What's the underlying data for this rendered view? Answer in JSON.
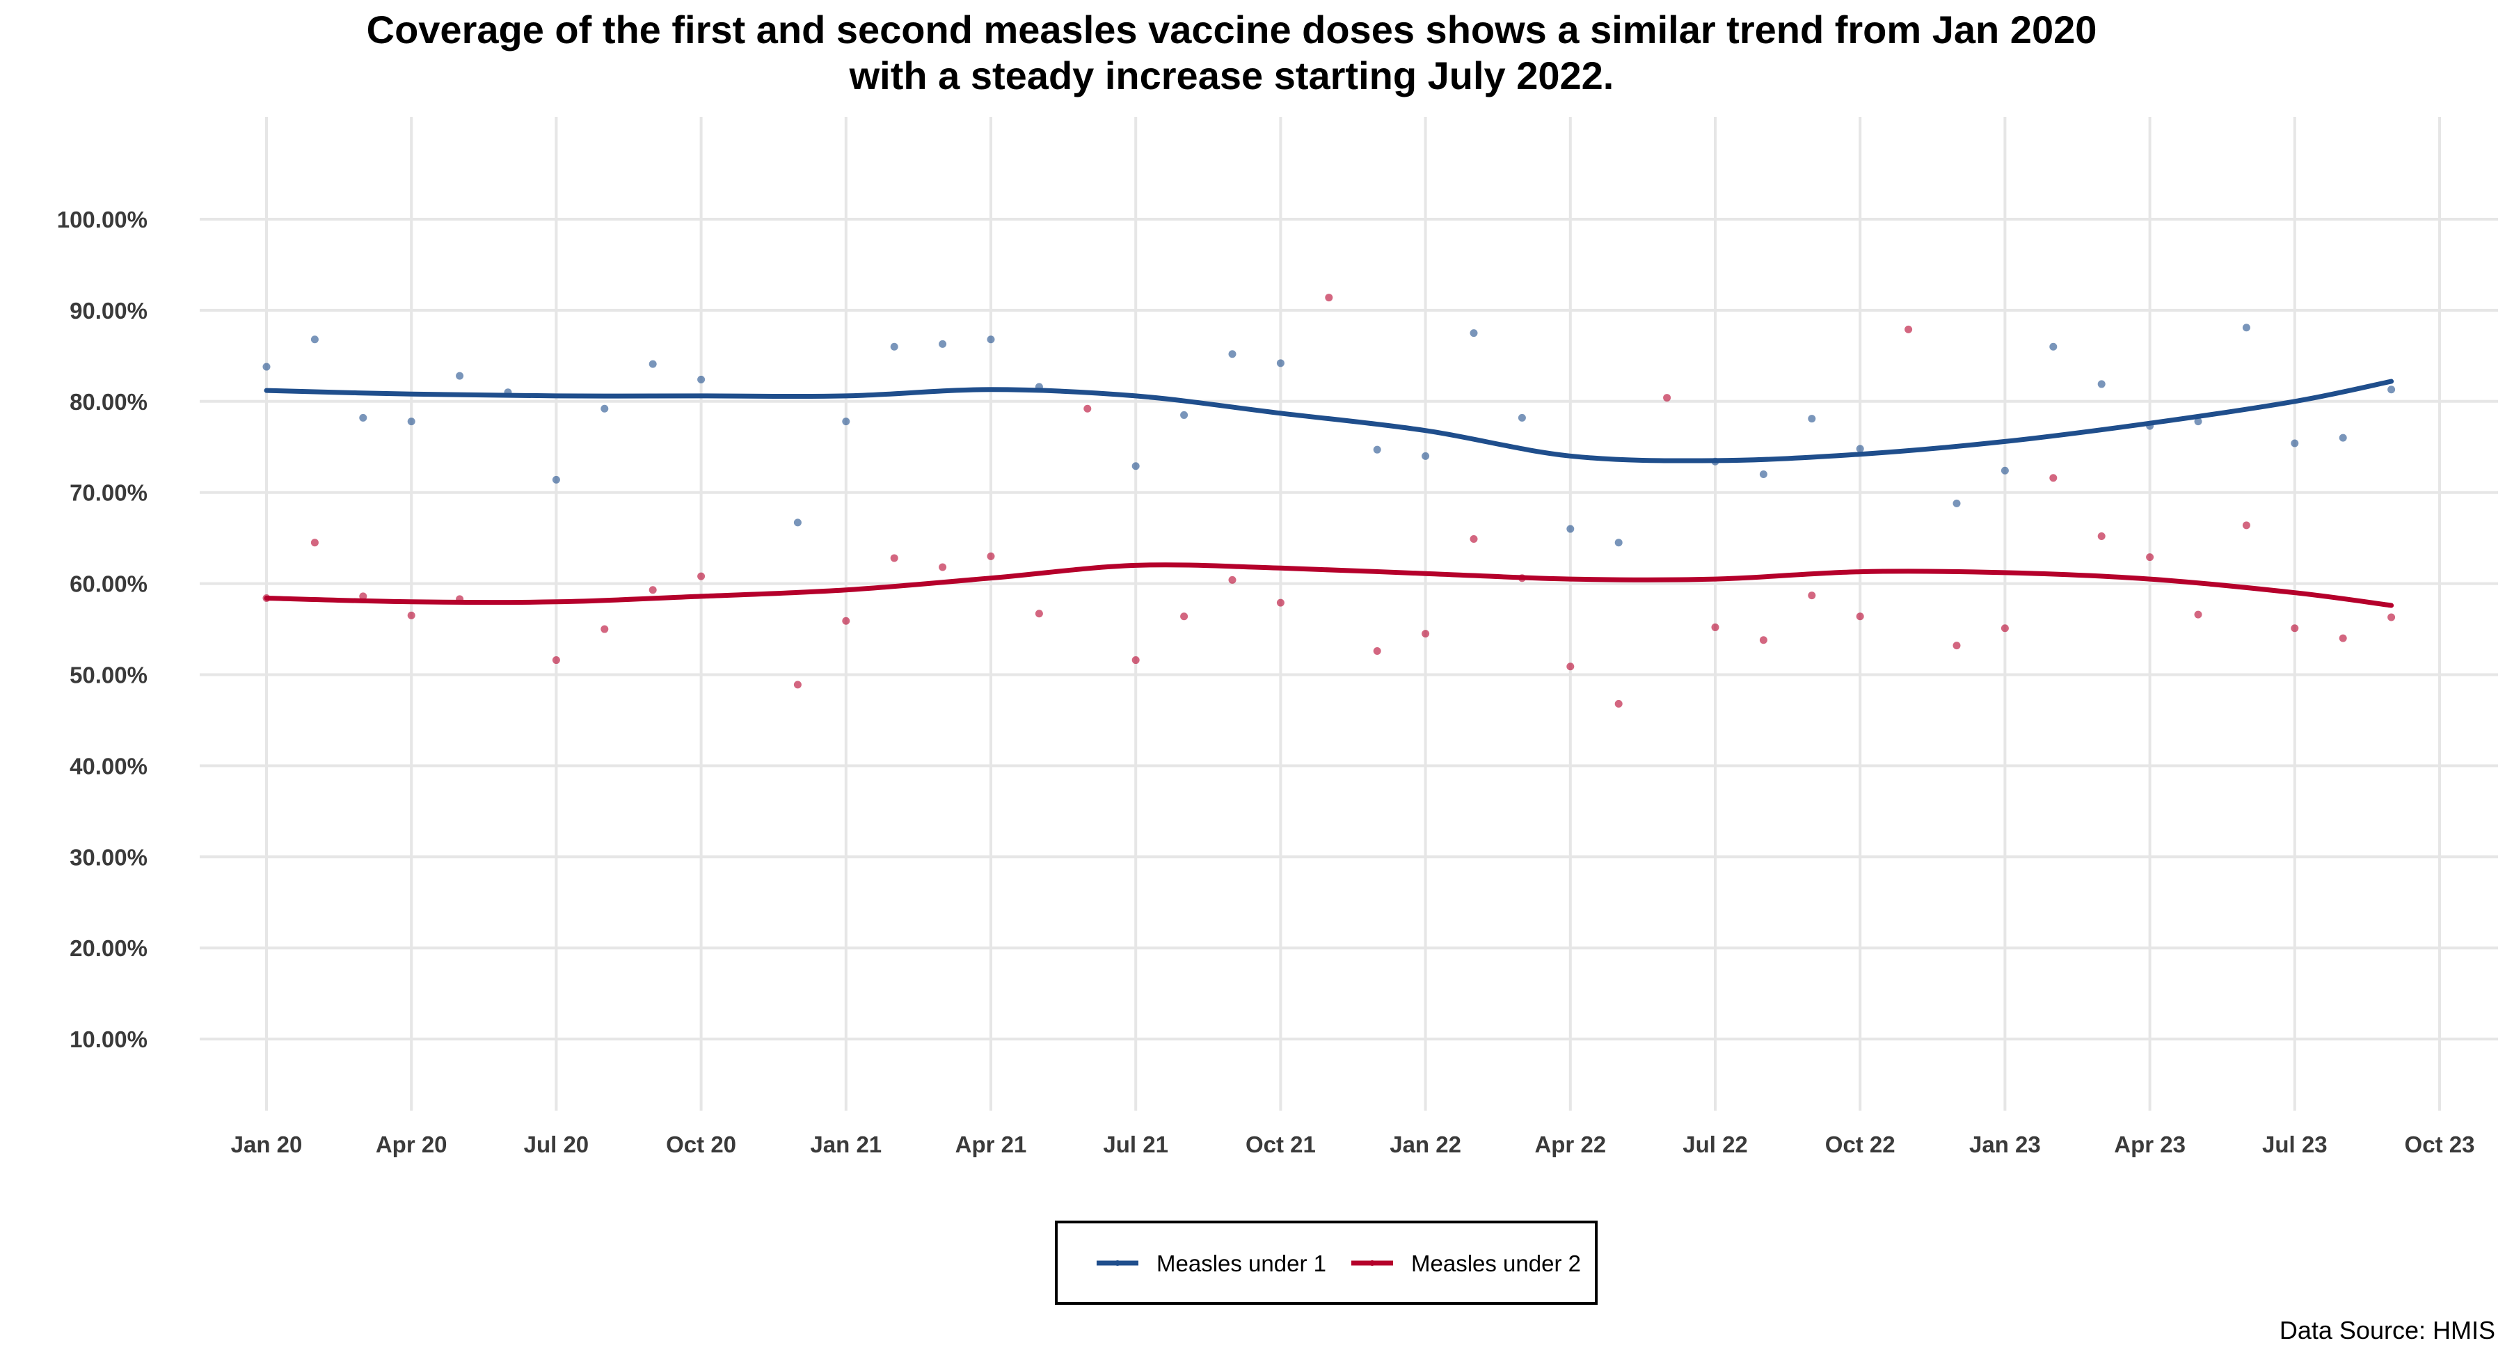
{
  "title_lines": [
    "Coverage of the first and second measles vaccine doses shows a similar trend from Jan 2020",
    "with a steady increase starting July 2022."
  ],
  "source": "Data Source: HMIS",
  "colors": {
    "series1": "#1f4e8c",
    "series2": "#b5002b",
    "grid": "#e6e6e6"
  },
  "chart_data": {
    "type": "scatter",
    "title": "Coverage of the first and second measles vaccine doses shows a similar trend from Jan 2020 with a steady increase starting July 2022.",
    "xlabel": "",
    "ylabel": "",
    "x_ticks": [
      {
        "month": "2020-01",
        "label": "Jan 20"
      },
      {
        "month": "2020-04",
        "label": "Apr 20"
      },
      {
        "month": "2020-07",
        "label": "Jul 20"
      },
      {
        "month": "2020-10",
        "label": "Oct 20"
      },
      {
        "month": "2021-01",
        "label": "Jan 21"
      },
      {
        "month": "2021-04",
        "label": "Apr 21"
      },
      {
        "month": "2021-07",
        "label": "Jul 21"
      },
      {
        "month": "2021-10",
        "label": "Oct 21"
      },
      {
        "month": "2022-01",
        "label": "Jan 22"
      },
      {
        "month": "2022-04",
        "label": "Apr 22"
      },
      {
        "month": "2022-07",
        "label": "Jul 22"
      },
      {
        "month": "2022-10",
        "label": "Oct 22"
      },
      {
        "month": "2023-01",
        "label": "Jan 23"
      },
      {
        "month": "2023-04",
        "label": "Apr 23"
      },
      {
        "month": "2023-07",
        "label": "Jul 23"
      },
      {
        "month": "2023-10",
        "label": "Oct 23"
      }
    ],
    "y_ticks": [
      {
        "value": 10,
        "label": "10.00%"
      },
      {
        "value": 20,
        "label": "20.00%"
      },
      {
        "value": 30,
        "label": "30.00%"
      },
      {
        "value": 40,
        "label": "40.00%"
      },
      {
        "value": 50,
        "label": "50.00%"
      },
      {
        "value": 60,
        "label": "60.00%"
      },
      {
        "value": 70,
        "label": "70.00%"
      },
      {
        "value": 80,
        "label": "80.00%"
      },
      {
        "value": 90,
        "label": "90.00%"
      },
      {
        "value": 100,
        "label": "100.00%"
      }
    ],
    "ylim": [
      0,
      104
    ],
    "xlim": [
      "2019-12",
      "2023-11"
    ],
    "grid": true,
    "legend_position": "bottom",
    "series": [
      {
        "name": "Measles under 1",
        "color": "#1f4e8c",
        "points": [
          {
            "x": "2020-01",
            "y": 83.8
          },
          {
            "x": "2020-02",
            "y": 86.8
          },
          {
            "x": "2020-03",
            "y": 78.2
          },
          {
            "x": "2020-04",
            "y": 77.8
          },
          {
            "x": "2020-05",
            "y": 82.8
          },
          {
            "x": "2020-06",
            "y": 81.0
          },
          {
            "x": "2020-07",
            "y": 71.4
          },
          {
            "x": "2020-08",
            "y": 79.2
          },
          {
            "x": "2020-09",
            "y": 84.1
          },
          {
            "x": "2020-10",
            "y": 82.4
          },
          {
            "x": "2020-12",
            "y": 66.7
          },
          {
            "x": "2021-01",
            "y": 77.8
          },
          {
            "x": "2021-02",
            "y": 86.0
          },
          {
            "x": "2021-03",
            "y": 86.3
          },
          {
            "x": "2021-04",
            "y": 86.8
          },
          {
            "x": "2021-05",
            "y": 81.6
          },
          {
            "x": "2021-07",
            "y": 72.9
          },
          {
            "x": "2021-08",
            "y": 78.5
          },
          {
            "x": "2021-09",
            "y": 85.2
          },
          {
            "x": "2021-10",
            "y": 84.2
          },
          {
            "x": "2021-12",
            "y": 74.7
          },
          {
            "x": "2022-01",
            "y": 74.0
          },
          {
            "x": "2022-02",
            "y": 87.5
          },
          {
            "x": "2022-03",
            "y": 78.2
          },
          {
            "x": "2022-04",
            "y": 66.0
          },
          {
            "x": "2022-05",
            "y": 64.5
          },
          {
            "x": "2022-07",
            "y": 73.4
          },
          {
            "x": "2022-08",
            "y": 72.0
          },
          {
            "x": "2022-09",
            "y": 78.1
          },
          {
            "x": "2022-10",
            "y": 74.8
          },
          {
            "x": "2022-12",
            "y": 68.8
          },
          {
            "x": "2023-01",
            "y": 72.4
          },
          {
            "x": "2023-02",
            "y": 86.0
          },
          {
            "x": "2023-03",
            "y": 81.9
          },
          {
            "x": "2023-04",
            "y": 77.3
          },
          {
            "x": "2023-05",
            "y": 77.8
          },
          {
            "x": "2023-06",
            "y": 88.1
          },
          {
            "x": "2023-07",
            "y": 75.4
          },
          {
            "x": "2023-08",
            "y": 76.0
          },
          {
            "x": "2023-09",
            "y": 81.3
          }
        ],
        "trend": [
          {
            "x": "2020-01",
            "y": 81.2
          },
          {
            "x": "2020-04",
            "y": 80.8
          },
          {
            "x": "2020-07",
            "y": 80.6
          },
          {
            "x": "2020-10",
            "y": 80.6
          },
          {
            "x": "2021-01",
            "y": 80.6
          },
          {
            "x": "2021-04",
            "y": 81.3
          },
          {
            "x": "2021-07",
            "y": 80.6
          },
          {
            "x": "2021-10",
            "y": 78.7
          },
          {
            "x": "2022-01",
            "y": 76.8
          },
          {
            "x": "2022-04",
            "y": 74.0
          },
          {
            "x": "2022-07",
            "y": 73.5
          },
          {
            "x": "2022-10",
            "y": 74.2
          },
          {
            "x": "2023-01",
            "y": 75.6
          },
          {
            "x": "2023-04",
            "y": 77.6
          },
          {
            "x": "2023-07",
            "y": 80.0
          },
          {
            "x": "2023-09",
            "y": 82.2
          }
        ]
      },
      {
        "name": "Measles under 2",
        "color": "#b5002b",
        "points": [
          {
            "x": "2020-01",
            "y": 58.4
          },
          {
            "x": "2020-02",
            "y": 64.5
          },
          {
            "x": "2020-03",
            "y": 58.6
          },
          {
            "x": "2020-04",
            "y": 56.5
          },
          {
            "x": "2020-05",
            "y": 58.3
          },
          {
            "x": "2020-07",
            "y": 51.6
          },
          {
            "x": "2020-08",
            "y": 55.0
          },
          {
            "x": "2020-09",
            "y": 59.3
          },
          {
            "x": "2020-10",
            "y": 60.8
          },
          {
            "x": "2020-12",
            "y": 48.9
          },
          {
            "x": "2021-01",
            "y": 55.9
          },
          {
            "x": "2021-02",
            "y": 62.8
          },
          {
            "x": "2021-03",
            "y": 61.8
          },
          {
            "x": "2021-04",
            "y": 63.0
          },
          {
            "x": "2021-05",
            "y": 56.7
          },
          {
            "x": "2021-06",
            "y": 79.2
          },
          {
            "x": "2021-07",
            "y": 51.6
          },
          {
            "x": "2021-08",
            "y": 56.4
          },
          {
            "x": "2021-09",
            "y": 60.4
          },
          {
            "x": "2021-10",
            "y": 57.9
          },
          {
            "x": "2021-11",
            "y": 91.4
          },
          {
            "x": "2021-12",
            "y": 52.6
          },
          {
            "x": "2022-01",
            "y": 54.5
          },
          {
            "x": "2022-02",
            "y": 64.9
          },
          {
            "x": "2022-03",
            "y": 60.6
          },
          {
            "x": "2022-04",
            "y": 50.9
          },
          {
            "x": "2022-05",
            "y": 46.8
          },
          {
            "x": "2022-06",
            "y": 80.4
          },
          {
            "x": "2022-07",
            "y": 55.2
          },
          {
            "x": "2022-08",
            "y": 53.8
          },
          {
            "x": "2022-09",
            "y": 58.7
          },
          {
            "x": "2022-10",
            "y": 56.4
          },
          {
            "x": "2022-11",
            "y": 87.9
          },
          {
            "x": "2022-12",
            "y": 53.2
          },
          {
            "x": "2023-01",
            "y": 55.1
          },
          {
            "x": "2023-02",
            "y": 71.6
          },
          {
            "x": "2023-03",
            "y": 65.2
          },
          {
            "x": "2023-04",
            "y": 62.9
          },
          {
            "x": "2023-05",
            "y": 56.6
          },
          {
            "x": "2023-06",
            "y": 66.4
          },
          {
            "x": "2023-07",
            "y": 55.1
          },
          {
            "x": "2023-08",
            "y": 54.0
          },
          {
            "x": "2023-09",
            "y": 56.3
          }
        ],
        "trend": [
          {
            "x": "2020-01",
            "y": 58.4
          },
          {
            "x": "2020-04",
            "y": 58.0
          },
          {
            "x": "2020-07",
            "y": 58.0
          },
          {
            "x": "2020-10",
            "y": 58.6
          },
          {
            "x": "2021-01",
            "y": 59.3
          },
          {
            "x": "2021-04",
            "y": 60.6
          },
          {
            "x": "2021-07",
            "y": 62.0
          },
          {
            "x": "2021-10",
            "y": 61.7
          },
          {
            "x": "2022-01",
            "y": 61.1
          },
          {
            "x": "2022-04",
            "y": 60.5
          },
          {
            "x": "2022-07",
            "y": 60.5
          },
          {
            "x": "2022-10",
            "y": 61.3
          },
          {
            "x": "2023-01",
            "y": 61.2
          },
          {
            "x": "2023-04",
            "y": 60.5
          },
          {
            "x": "2023-07",
            "y": 59.0
          },
          {
            "x": "2023-09",
            "y": 57.6
          }
        ]
      }
    ]
  }
}
